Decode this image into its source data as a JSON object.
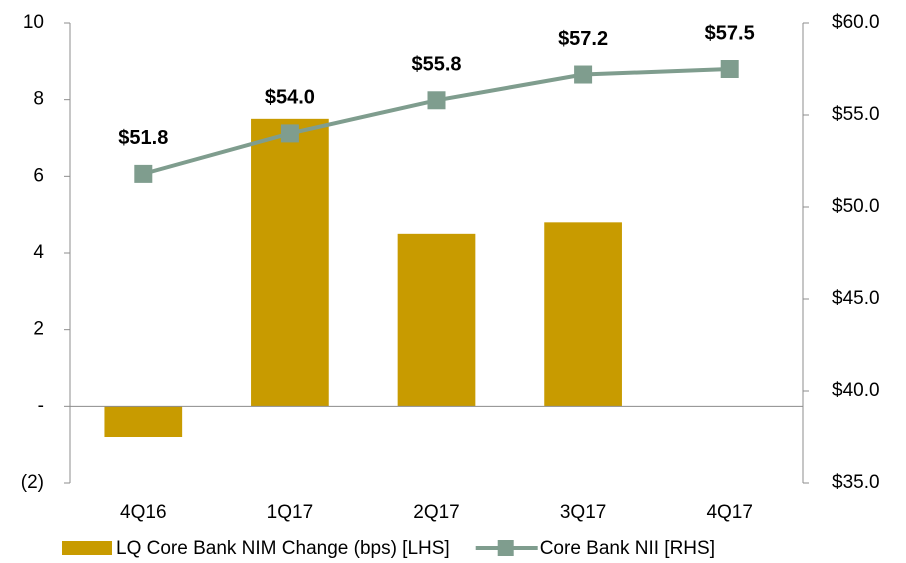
{
  "chart_data": {
    "type": "combo",
    "categories": [
      "4Q16",
      "1Q17",
      "2Q17",
      "3Q17",
      "4Q17"
    ],
    "series": [
      {
        "name": "LQ Core Bank NIM Change (bps) [LHS]",
        "type": "bar",
        "color": "#c89b00",
        "values": [
          -0.8,
          7.5,
          4.5,
          4.8,
          0
        ]
      },
      {
        "name": "Core Bank NII [RHS]",
        "type": "line",
        "axis": "y2",
        "color": "#7f9d8e",
        "values": [
          51.8,
          54.0,
          55.8,
          57.2,
          57.5
        ],
        "value_labels": [
          "$51.8",
          "$54.0",
          "$55.8",
          "$57.2",
          "$57.5"
        ]
      }
    ],
    "ylim": [
      -2,
      10
    ],
    "yticks": [
      {
        "value": -2,
        "label": "(2)"
      },
      {
        "value": 0,
        "label": "-"
      },
      2,
      4,
      6,
      8,
      10
    ],
    "y2lim": [
      35,
      60
    ],
    "y2ticks": [
      {
        "value": 35,
        "label": "$35.0"
      },
      {
        "value": 40,
        "label": "$40.0"
      },
      {
        "value": 45,
        "label": "$45.0"
      },
      {
        "value": 50,
        "label": "$50.0"
      },
      {
        "value": 55,
        "label": "$55.0"
      },
      {
        "value": 60,
        "label": "$60.0"
      }
    ],
    "legend": "bottom"
  }
}
